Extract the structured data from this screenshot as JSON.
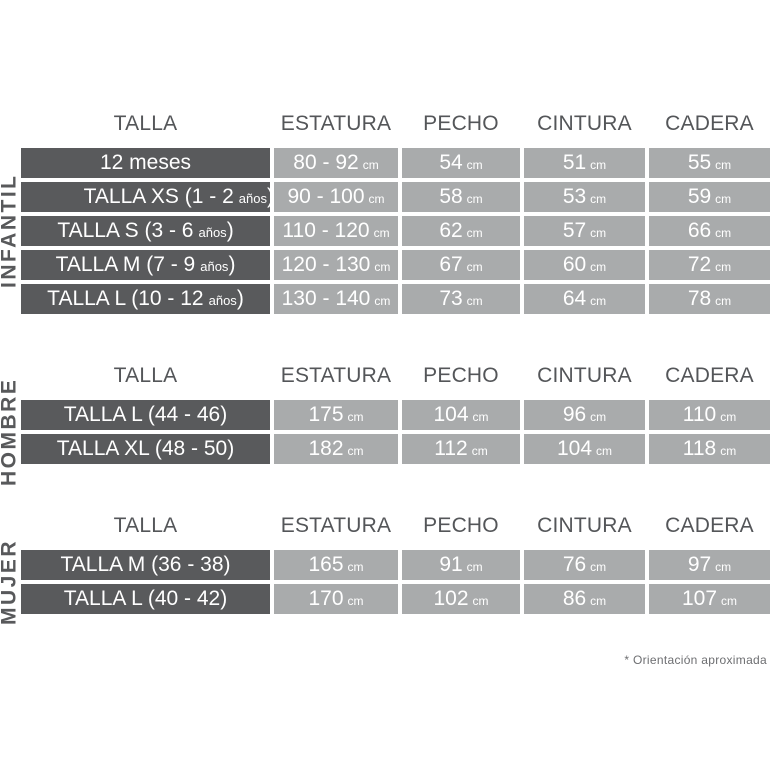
{
  "colors": {
    "dark_cell": "#595a5c",
    "light_cell": "#a9abac",
    "header_text": "#545659",
    "section_label_text": "#58595b",
    "footer_text": "#6d6e71",
    "cell_text": "#ffffff"
  },
  "footer": {
    "note": "* Orientación aproximada"
  },
  "sections": [
    {
      "label": "INFANTIL",
      "headers": [
        "TALLA",
        "ESTATURA",
        "PECHO",
        "CINTURA",
        "CADERA"
      ],
      "rows": [
        {
          "talla": {
            "main": "12 meses",
            "small": "",
            "tail": ""
          },
          "values": [
            {
              "num": "80 - 92",
              "unit": "cm"
            },
            {
              "num": "54",
              "unit": "cm"
            },
            {
              "num": "51",
              "unit": "cm"
            },
            {
              "num": "55",
              "unit": "cm"
            }
          ]
        },
        {
          "talla": {
            "main": "TALLA XS (1 - 2",
            "small": "años",
            "tail": ")"
          },
          "align": "right",
          "values": [
            {
              "num": "90 - 100",
              "unit": "cm"
            },
            {
              "num": "58",
              "unit": "cm"
            },
            {
              "num": "53",
              "unit": "cm"
            },
            {
              "num": "59",
              "unit": "cm"
            }
          ]
        },
        {
          "talla": {
            "main": "TALLA S (3 - 6",
            "small": "años",
            "tail": ")"
          },
          "values": [
            {
              "num": "110 - 120",
              "unit": "cm"
            },
            {
              "num": "62",
              "unit": "cm"
            },
            {
              "num": "57",
              "unit": "cm"
            },
            {
              "num": "66",
              "unit": "cm"
            }
          ]
        },
        {
          "talla": {
            "main": "TALLA M (7 - 9",
            "small": "años",
            "tail": ")"
          },
          "values": [
            {
              "num": "120 - 130",
              "unit": "cm"
            },
            {
              "num": "67",
              "unit": "cm"
            },
            {
              "num": "60",
              "unit": "cm"
            },
            {
              "num": "72",
              "unit": "cm"
            }
          ]
        },
        {
          "talla": {
            "main": "TALLA L (10 - 12",
            "small": "años",
            "tail": ")"
          },
          "values": [
            {
              "num": "130 - 140",
              "unit": "cm"
            },
            {
              "num": "73",
              "unit": "cm"
            },
            {
              "num": "64",
              "unit": "cm"
            },
            {
              "num": "78",
              "unit": "cm"
            }
          ]
        }
      ]
    },
    {
      "label": "HOMBRE",
      "headers": [
        "TALLA",
        "ESTATURA",
        "PECHO",
        "CINTURA",
        "CADERA"
      ],
      "rows": [
        {
          "talla": {
            "main": "TALLA L (44 - 46)",
            "small": "",
            "tail": ""
          },
          "values": [
            {
              "num": "175",
              "unit": "cm"
            },
            {
              "num": "104",
              "unit": "cm"
            },
            {
              "num": "96",
              "unit": "cm"
            },
            {
              "num": "110",
              "unit": "cm"
            }
          ]
        },
        {
          "talla": {
            "main": "TALLA XL (48 - 50)",
            "small": "",
            "tail": ""
          },
          "values": [
            {
              "num": "182",
              "unit": "cm"
            },
            {
              "num": "112",
              "unit": "cm"
            },
            {
              "num": "104",
              "unit": "cm"
            },
            {
              "num": "118",
              "unit": "cm"
            }
          ]
        }
      ]
    },
    {
      "label": "MUJER",
      "headers": [
        "TALLA",
        "ESTATURA",
        "PECHO",
        "CINTURA",
        "CADERA"
      ],
      "rows": [
        {
          "talla": {
            "main": "TALLA M (36 - 38)",
            "small": "",
            "tail": ""
          },
          "values": [
            {
              "num": "165",
              "unit": "cm"
            },
            {
              "num": "91",
              "unit": "cm"
            },
            {
              "num": "76",
              "unit": "cm"
            },
            {
              "num": "97",
              "unit": "cm"
            }
          ]
        },
        {
          "talla": {
            "main": "TALLA L (40 - 42)",
            "small": "",
            "tail": ""
          },
          "values": [
            {
              "num": "170",
              "unit": "cm"
            },
            {
              "num": "102",
              "unit": "cm"
            },
            {
              "num": "86",
              "unit": "cm"
            },
            {
              "num": "107",
              "unit": "cm"
            }
          ]
        }
      ]
    }
  ],
  "chart_data": [
    {
      "type": "table",
      "title": "INFANTIL",
      "columns": [
        "TALLA",
        "ESTATURA",
        "PECHO",
        "CINTURA",
        "CADERA"
      ],
      "rows": [
        [
          "12 meses",
          "80 - 92 cm",
          "54 cm",
          "51 cm",
          "55 cm"
        ],
        [
          "TALLA XS (1 - 2 años)",
          "90 - 100 cm",
          "58 cm",
          "53 cm",
          "59 cm"
        ],
        [
          "TALLA S (3 - 6 años)",
          "110 - 120 cm",
          "62 cm",
          "57 cm",
          "66 cm"
        ],
        [
          "TALLA M (7 - 9 años)",
          "120 - 130 cm",
          "67 cm",
          "60 cm",
          "72 cm"
        ],
        [
          "TALLA L (10 - 12 años)",
          "130 - 140 cm",
          "73 cm",
          "64 cm",
          "78 cm"
        ]
      ]
    },
    {
      "type": "table",
      "title": "HOMBRE",
      "columns": [
        "TALLA",
        "ESTATURA",
        "PECHO",
        "CINTURA",
        "CADERA"
      ],
      "rows": [
        [
          "TALLA L (44 - 46)",
          "175 cm",
          "104 cm",
          "96 cm",
          "110 cm"
        ],
        [
          "TALLA XL (48 - 50)",
          "182 cm",
          "112 cm",
          "104 cm",
          "118 cm"
        ]
      ]
    },
    {
      "type": "table",
      "title": "MUJER",
      "columns": [
        "TALLA",
        "ESTATURA",
        "PECHO",
        "CINTURA",
        "CADERA"
      ],
      "rows": [
        [
          "TALLA M (36 - 38)",
          "165 cm",
          "91 cm",
          "76 cm",
          "97 cm"
        ],
        [
          "TALLA L (40 - 42)",
          "170 cm",
          "102 cm",
          "86 cm",
          "107 cm"
        ]
      ]
    }
  ]
}
